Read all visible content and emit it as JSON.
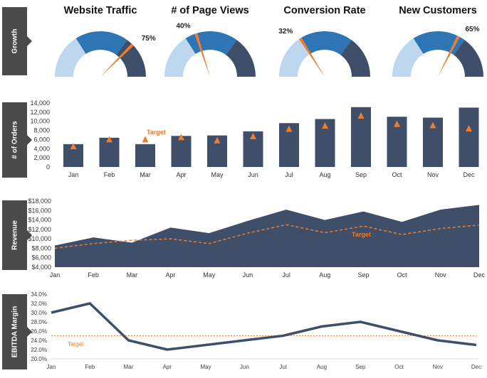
{
  "colors": {
    "dark": "#3f4e69",
    "mid": "#2e75b6",
    "light": "#bdd7ee",
    "accent": "#ed7d31",
    "tab": "#4b4b4b"
  },
  "sections": {
    "growth": "Growth",
    "orders": "# of Orders",
    "revenue": "Revenue",
    "ebitda": "EBITDA Margin"
  },
  "gauges": [
    {
      "title": "Website Traffic",
      "value": 75,
      "label": "75%"
    },
    {
      "title": "# of Page Views",
      "value": 40,
      "label": "40%"
    },
    {
      "title": "Conversion Rate",
      "value": 32,
      "label": "32%"
    },
    {
      "title": "New Customers",
      "value": 65,
      "label": "65%"
    }
  ],
  "chart_data": [
    {
      "type": "bar",
      "title": "",
      "ylabel": "# of Orders",
      "categories": [
        "Jan",
        "Feb",
        "Mar",
        "Apr",
        "May",
        "Jun",
        "Jul",
        "Aug",
        "Sep",
        "Oct",
        "Nov",
        "Dec"
      ],
      "ylim": [
        0,
        14000
      ],
      "yticks": [
        "0",
        "2,000",
        "4,000",
        "6,000",
        "8,000",
        "10,000",
        "12,000",
        "14,000"
      ],
      "series": [
        {
          "name": "",
          "values": [
            5000,
            6400,
            5000,
            6800,
            6900,
            7800,
            9600,
            10500,
            13100,
            11000,
            10800,
            13000
          ]
        },
        {
          "name": "Target",
          "marker": "triangle",
          "values": [
            4500,
            6000,
            6000,
            6500,
            5800,
            6700,
            8300,
            9000,
            11200,
            9400,
            9100,
            8400
          ]
        }
      ],
      "annotation": "Target"
    },
    {
      "type": "area",
      "title": "",
      "ylabel": "Revenue",
      "categories": [
        "Jan",
        "Feb",
        "Mar",
        "Apr",
        "May",
        "Jun",
        "Jul",
        "Aug",
        "Sep",
        "Oct",
        "Nov",
        "Dec"
      ],
      "ylim": [
        4000,
        18000
      ],
      "yticks": [
        "$4,000",
        "$6,000",
        "$8,000",
        "$10,000",
        "$12,000",
        "$14,000",
        "$16,000",
        "$18,000"
      ],
      "series": [
        {
          "name": "",
          "values": [
            8600,
            10300,
            9200,
            12400,
            11200,
            13800,
            16200,
            14000,
            15800,
            13600,
            16200,
            17200
          ]
        },
        {
          "name": "Target",
          "style": "dashed",
          "values": [
            8000,
            9000,
            9700,
            10000,
            9000,
            11200,
            13000,
            11300,
            12700,
            10900,
            12200,
            12900
          ]
        }
      ],
      "annotation": "Target"
    },
    {
      "type": "line",
      "title": "",
      "ylabel": "EBITDA Margin",
      "categories": [
        "Jan",
        "Feb",
        "Mar",
        "Apr",
        "May",
        "Jun",
        "Jul",
        "Aug",
        "Sep",
        "Oct",
        "Nov",
        "Dec"
      ],
      "ylim": [
        20,
        34
      ],
      "yticks": [
        "20.0%",
        "22.0%",
        "24.0%",
        "26.0%",
        "28.0%",
        "30.0%",
        "32.0%",
        "34.0%"
      ],
      "series": [
        {
          "name": "",
          "values": [
            30,
            32,
            24,
            22,
            23,
            24,
            25,
            27,
            28,
            26,
            24,
            23
          ]
        },
        {
          "name": "Target",
          "style": "dotted",
          "values": [
            25,
            25,
            25,
            25,
            25,
            25,
            25,
            25,
            25,
            25,
            25,
            25
          ]
        }
      ],
      "annotation": "Target"
    }
  ]
}
